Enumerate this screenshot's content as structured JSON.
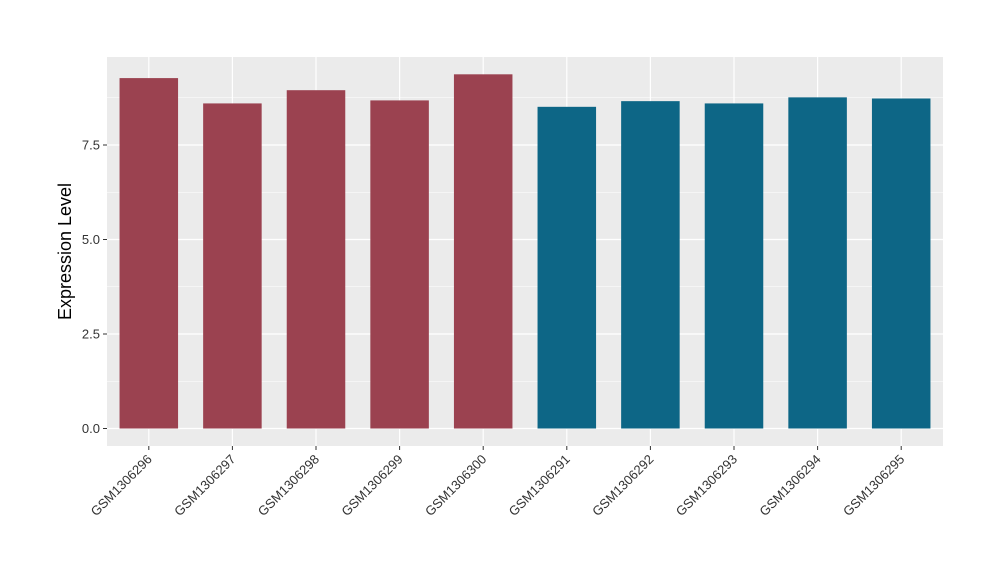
{
  "chart_data": {
    "type": "bar",
    "ylabel": "Expression Level",
    "xlabel": "",
    "ylim": [
      0,
      9.85
    ],
    "yticks": [
      0.0,
      2.5,
      5.0,
      7.5
    ],
    "ytick_labels": [
      "0.0",
      "2.5",
      "5.0",
      "7.5"
    ],
    "categories": [
      "GSM1306296",
      "GSM1306297",
      "GSM1306298",
      "GSM1306299",
      "GSM1306300",
      "GSM1306291",
      "GSM1306292",
      "GSM1306293",
      "GSM1306294",
      "GSM1306295"
    ],
    "values": [
      9.27,
      8.6,
      8.95,
      8.68,
      9.37,
      8.51,
      8.66,
      8.6,
      8.76,
      8.73
    ],
    "group_colors": [
      "#9b4250",
      "#9b4250",
      "#9b4250",
      "#9b4250",
      "#9b4250",
      "#0d6686",
      "#0d6686",
      "#0d6686",
      "#0d6686",
      "#0d6686"
    ],
    "panel_background": "#ebebeb",
    "grid": true,
    "grid_color": "#ffffff",
    "legend": "none"
  }
}
